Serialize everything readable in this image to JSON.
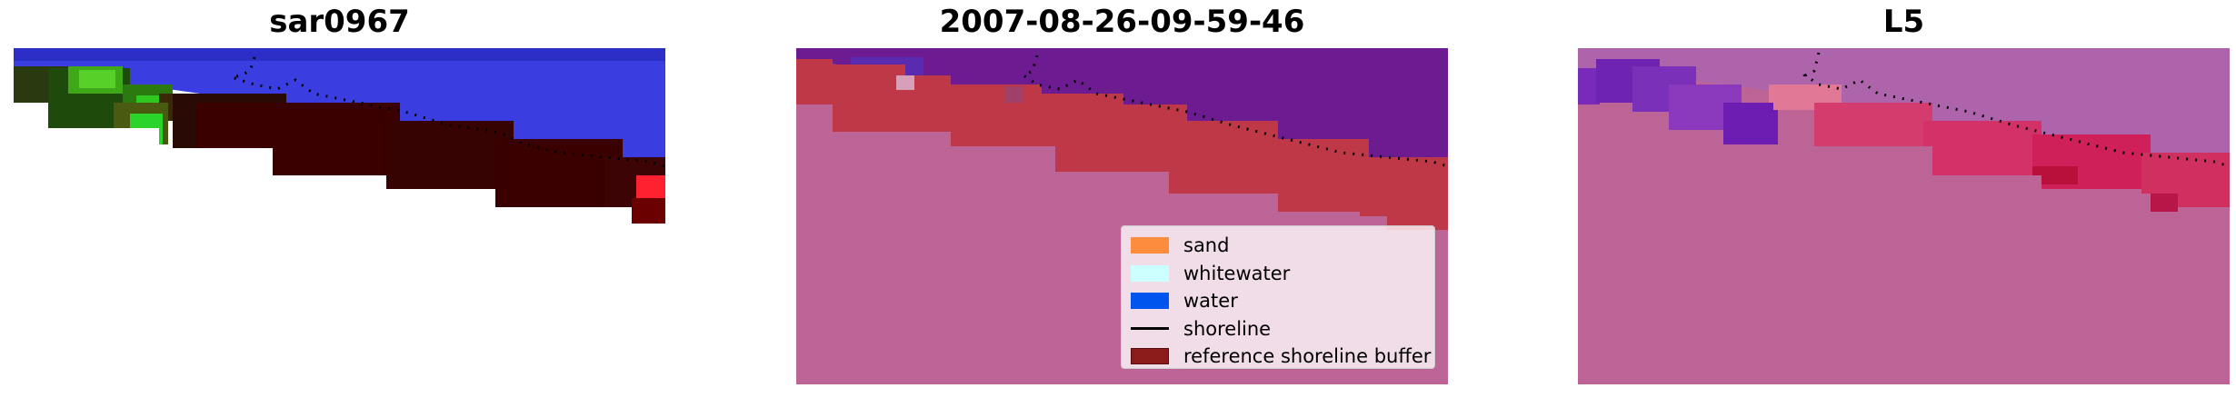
{
  "panels": [
    {
      "title": "sar0967"
    },
    {
      "title": "2007-08-26-09-59-46"
    },
    {
      "title": "L5"
    }
  ],
  "legend": {
    "items": [
      {
        "label": "sand",
        "color": "#fd8d3c",
        "kind": "patch"
      },
      {
        "label": "whitewater",
        "color": "#ccffff",
        "kind": "patch"
      },
      {
        "label": "water",
        "color": "#0055ee",
        "kind": "patch"
      },
      {
        "label": "shoreline",
        "color": "#000000",
        "kind": "line"
      },
      {
        "label": "reference shoreline buffer",
        "color": "#8b1a1a",
        "kind": "patch"
      }
    ]
  },
  "colors": {
    "background_pink": "#bc6496",
    "water_purple": "#6c1c90",
    "buffer_red": "#bf3848",
    "rgb_blue": "#3a3ee0",
    "rgb_dark": "#3a0000",
    "l5_mauve": "#ad64ab"
  }
}
